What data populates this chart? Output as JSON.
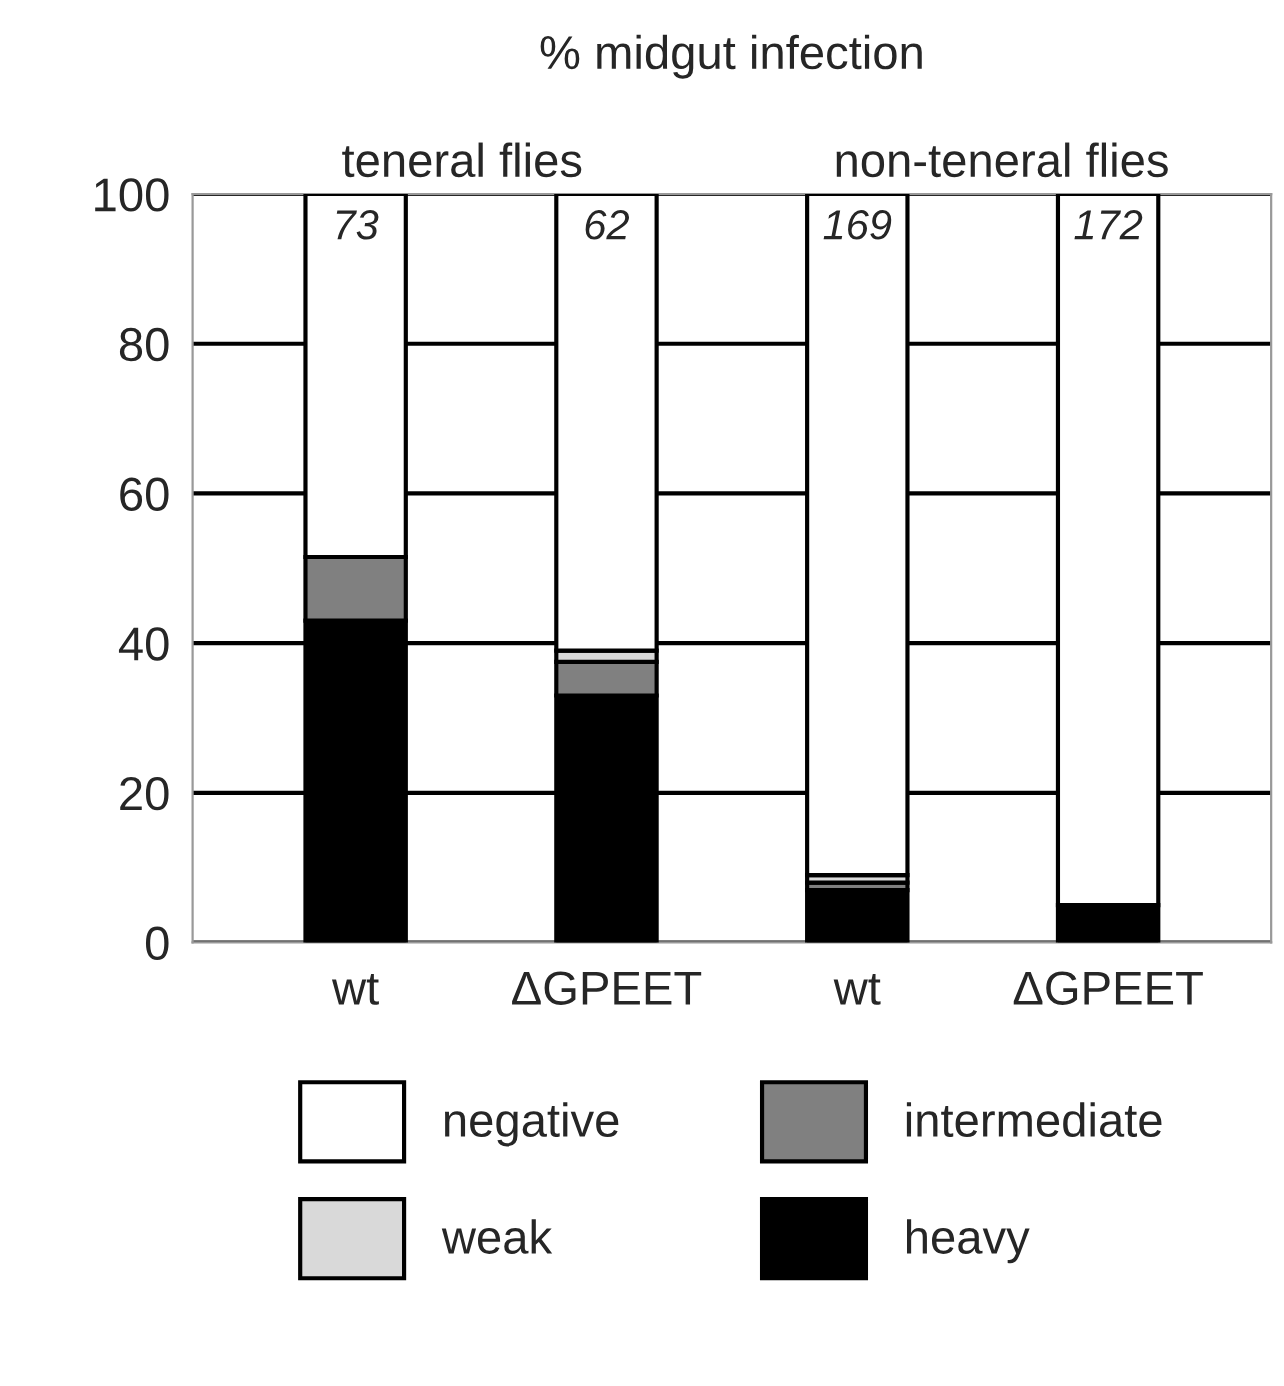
{
  "chart_data": {
    "type": "bar",
    "title": "% midgut infection",
    "categories": [
      "wt",
      "ΔGPEET",
      "wt",
      "ΔGPEET"
    ],
    "stacked": true,
    "series": [
      {
        "name": "heavy",
        "color": "#000000",
        "values": [
          43,
          33,
          7,
          5
        ]
      },
      {
        "name": "intermediate",
        "color": "#808080",
        "values": [
          8.5,
          4.5,
          1,
          0
        ]
      },
      {
        "name": "weak",
        "color": "#d9d9d9",
        "values": [
          0,
          1.5,
          1,
          0
        ]
      },
      {
        "name": "negative",
        "color": "#ffffff",
        "values": [
          48.5,
          61,
          91,
          95
        ]
      }
    ],
    "annotations": [
      "teneral flies",
      "non-teneral flies",
      "73",
      "62",
      "169",
      "172"
    ],
    "ylim": [
      0,
      100
    ],
    "yticks": [
      0,
      20,
      40,
      60,
      80,
      100
    ],
    "grid": "y",
    "legend": "bottom"
  }
}
